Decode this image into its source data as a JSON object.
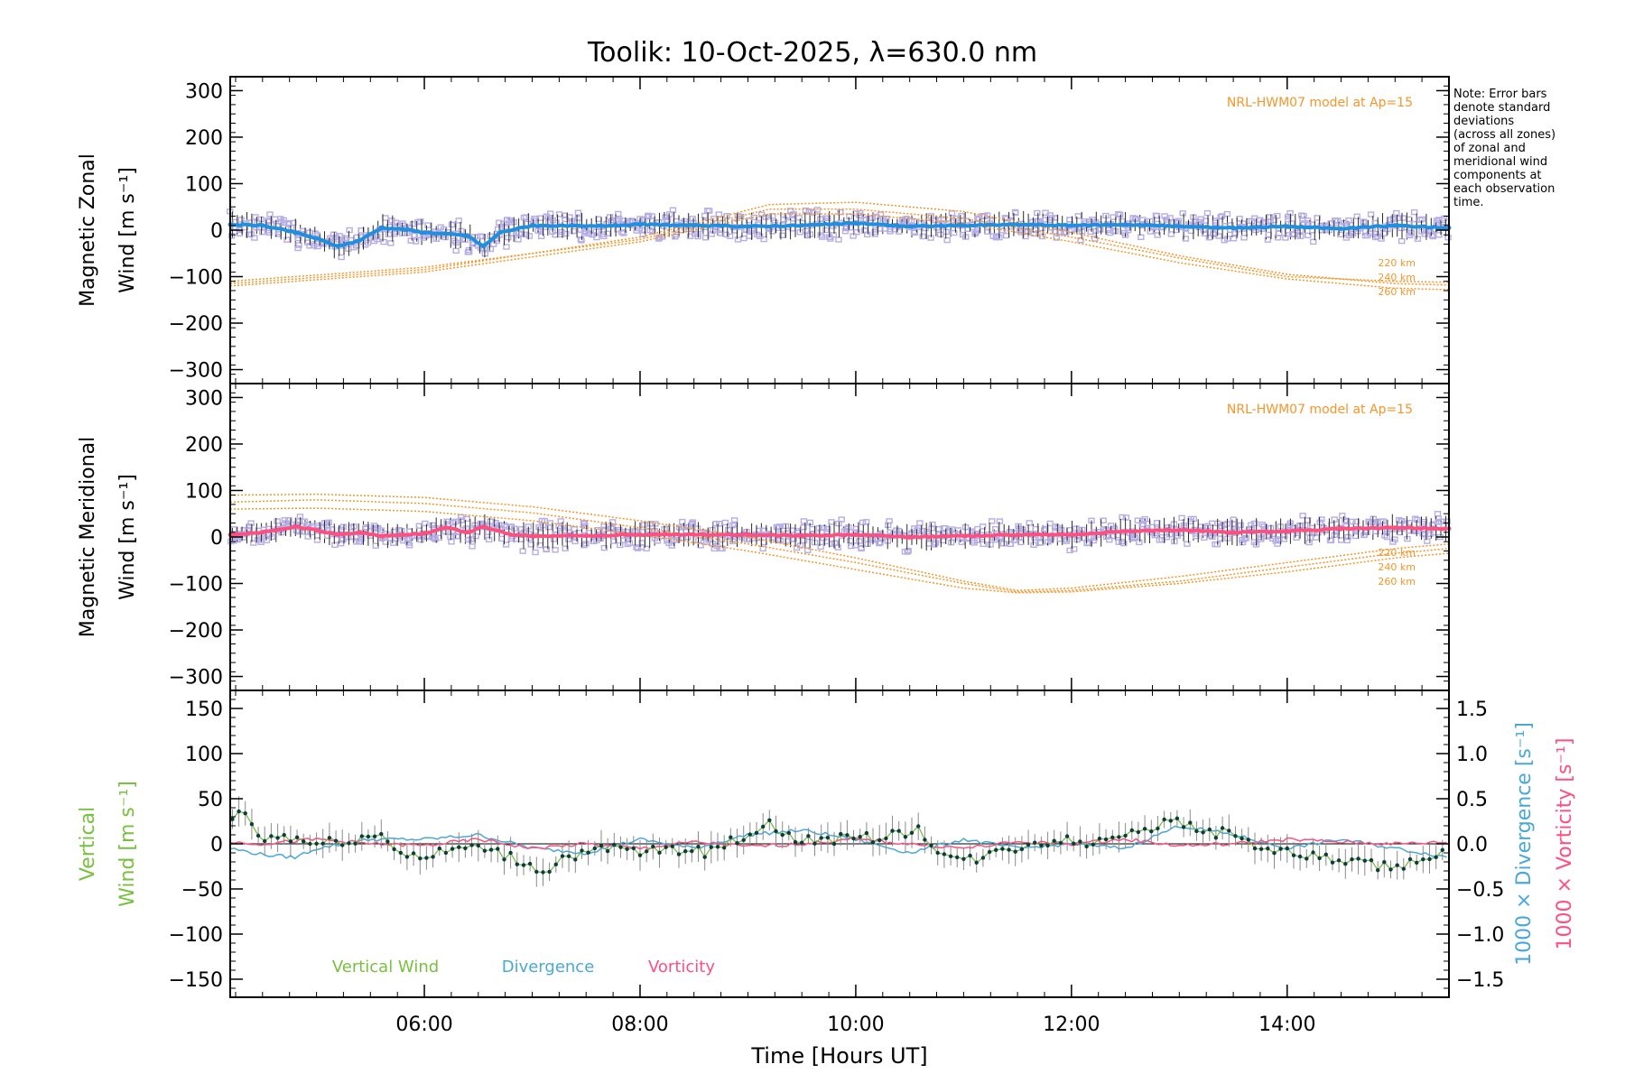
{
  "figure": {
    "title": "Toolik: 10-Oct-2025, λ=630.0 nm",
    "note_lines": [
      "Note: Error bars",
      "denote standard",
      "deviations",
      "(across all zones)",
      "of zonal and",
      "meridional wind",
      "components at",
      "each observation",
      "time."
    ],
    "xlabel": "Time [Hours UT]",
    "x_tick_labels": [
      "06:00",
      "08:00",
      "10:00",
      "12:00",
      "14:00"
    ],
    "colors": {
      "model": "#f5962a",
      "zonal": "#1f8fe0",
      "meridional": "#ff4f80",
      "zone_points": "#b6aee6",
      "vertical": "#78c040",
      "vertical_points": "#0b3d3a",
      "divergence": "#4aa8d8",
      "vorticity": "#ff4f80",
      "axis": "#000000"
    }
  },
  "chart_data": [
    {
      "type": "line",
      "panel": "zonal",
      "ylabel_top": "Magnetic Zonal",
      "ylabel_bottom": "Wind [m s⁻¹]",
      "y_tick_labels": [
        "300",
        "200",
        "100",
        "0",
        "−100",
        "−200",
        "−300"
      ],
      "ylim": [
        -330,
        330
      ],
      "xlim": [
        4.2,
        15.5
      ],
      "model_label": "NRL-HWM07 model at Ap=15",
      "model_alt_labels": [
        "220 km",
        "240 km",
        "260 km"
      ],
      "model_curves": [
        {
          "name": "220 km",
          "x": [
            4.2,
            6,
            8,
            9.2,
            10,
            11,
            12,
            13,
            14,
            15,
            15.5
          ],
          "y": [
            -115,
            -85,
            -15,
            55,
            60,
            40,
            -5,
            -55,
            -95,
            -115,
            -118
          ]
        },
        {
          "name": "240 km",
          "x": [
            4.2,
            6,
            8,
            9.2,
            10,
            11,
            12,
            13,
            14,
            15,
            15.5
          ],
          "y": [
            -110,
            -80,
            -20,
            45,
            45,
            25,
            -15,
            -60,
            -100,
            -110,
            -112
          ]
        },
        {
          "name": "260 km",
          "x": [
            4.2,
            6,
            8,
            9.2,
            10,
            11,
            12,
            13,
            14,
            15,
            15.5
          ],
          "y": [
            -120,
            -90,
            -25,
            35,
            35,
            15,
            -25,
            -70,
            -105,
            -125,
            -128
          ]
        }
      ],
      "series": [
        {
          "name": "Zonal wind",
          "x": [
            4.2,
            4.5,
            4.8,
            5.0,
            5.2,
            5.4,
            5.6,
            5.8,
            6.0,
            6.2,
            6.4,
            6.55,
            6.7,
            7.0,
            7.5,
            8.0,
            8.5,
            9.0,
            9.5,
            10.0,
            10.5,
            11.0,
            11.5,
            12.0,
            12.5,
            13.0,
            13.5,
            14.0,
            14.5,
            15.0,
            15.5
          ],
          "y": [
            12,
            10,
            -5,
            -18,
            -35,
            -22,
            5,
            2,
            -5,
            -8,
            -12,
            -35,
            -5,
            10,
            8,
            12,
            10,
            8,
            10,
            15,
            8,
            10,
            12,
            10,
            12,
            8,
            5,
            8,
            3,
            10,
            5
          ]
        }
      ]
    },
    {
      "type": "line",
      "panel": "meridional",
      "ylabel_top": "Magnetic Meridional",
      "ylabel_bottom": "Wind [m s⁻¹]",
      "y_tick_labels": [
        "300",
        "200",
        "100",
        "0",
        "−100",
        "−200",
        "−300"
      ],
      "ylim": [
        -330,
        330
      ],
      "xlim": [
        4.2,
        15.5
      ],
      "model_label": "NRL-HWM07 model at Ap=15",
      "model_alt_labels": [
        "220 km",
        "240 km",
        "260 km"
      ],
      "model_curves": [
        {
          "name": "220 km",
          "x": [
            4.2,
            5,
            6,
            7,
            8,
            9,
            10,
            11,
            11.5,
            12,
            13,
            14,
            15,
            15.5
          ],
          "y": [
            90,
            92,
            85,
            65,
            35,
            0,
            -45,
            -95,
            -115,
            -110,
            -85,
            -55,
            -25,
            -15
          ]
        },
        {
          "name": "240 km",
          "x": [
            4.2,
            5,
            6,
            7,
            8,
            9,
            10,
            11,
            11.5,
            12,
            13,
            14,
            15,
            15.5
          ],
          "y": [
            75,
            80,
            72,
            52,
            20,
            -15,
            -55,
            -100,
            -118,
            -115,
            -95,
            -65,
            -35,
            -25
          ]
        },
        {
          "name": "260 km",
          "x": [
            4.2,
            5,
            6,
            7,
            8,
            9,
            10,
            11,
            11.5,
            12,
            13,
            14,
            15,
            15.5
          ],
          "y": [
            60,
            62,
            55,
            35,
            5,
            -30,
            -70,
            -110,
            -120,
            -118,
            -100,
            -75,
            -45,
            -35
          ]
        }
      ],
      "series": [
        {
          "name": "Meridional wind",
          "x": [
            4.2,
            4.5,
            4.8,
            5.0,
            5.2,
            5.4,
            5.6,
            5.8,
            6.0,
            6.2,
            6.4,
            6.55,
            6.8,
            7.0,
            7.5,
            8.0,
            8.5,
            9.0,
            9.5,
            10.0,
            10.5,
            11.0,
            11.5,
            12.0,
            12.5,
            13.0,
            13.5,
            14.0,
            14.5,
            15.0,
            15.5
          ],
          "y": [
            5,
            10,
            22,
            15,
            5,
            10,
            2,
            5,
            8,
            20,
            10,
            22,
            5,
            2,
            3,
            5,
            5,
            5,
            3,
            5,
            0,
            2,
            5,
            5,
            12,
            15,
            10,
            12,
            18,
            20,
            18
          ]
        }
      ]
    },
    {
      "type": "line",
      "panel": "vertical",
      "ylabel_top": "Vertical",
      "ylabel_bottom": "Wind [m s⁻¹]",
      "y_tick_labels": [
        "150",
        "100",
        "50",
        "0",
        "−50",
        "−100",
        "−150"
      ],
      "ylim": [
        -170,
        170
      ],
      "xlim": [
        4.2,
        15.5
      ],
      "y2_tick_labels": [
        "1.5",
        "1.0",
        "0.5",
        "0.0",
        "−0.5",
        "−1.0",
        "−1.5"
      ],
      "y2lim": [
        -1.7,
        1.7
      ],
      "y2label_divergence": "1000 × Divergence [s⁻¹]",
      "y2label_vorticity": "1000 × Vorticity [s⁻¹]",
      "legend": [
        "Vertical Wind",
        "Divergence",
        "Vorticity"
      ],
      "series": [
        {
          "name": "Vertical Wind",
          "x": [
            4.2,
            4.3,
            4.4,
            4.5,
            4.7,
            5.0,
            5.3,
            5.6,
            5.8,
            6.0,
            6.3,
            6.6,
            6.9,
            7.1,
            7.3,
            7.5,
            7.8,
            8.0,
            8.3,
            8.6,
            9.0,
            9.2,
            9.4,
            9.7,
            10.0,
            10.3,
            10.6,
            10.8,
            11.0,
            11.3,
            11.6,
            11.9,
            12.2,
            12.5,
            12.8,
            13.0,
            13.2,
            13.5,
            13.8,
            14.0,
            14.3,
            14.6,
            14.9,
            15.2,
            15.5
          ],
          "y": [
            20,
            45,
            20,
            5,
            10,
            0,
            5,
            10,
            -10,
            -15,
            -5,
            -5,
            -20,
            -30,
            -15,
            -10,
            -5,
            -10,
            -5,
            -10,
            10,
            25,
            5,
            5,
            5,
            10,
            15,
            -10,
            -20,
            -10,
            0,
            5,
            0,
            15,
            20,
            25,
            15,
            10,
            -5,
            -10,
            -15,
            -20,
            -25,
            -20,
            -10
          ]
        },
        {
          "name": "Divergence",
          "x": [
            4.2,
            4.5,
            4.8,
            5.0,
            5.5,
            6.0,
            6.5,
            7.0,
            7.5,
            8.0,
            8.5,
            9.0,
            9.5,
            10.0,
            10.5,
            11.0,
            11.5,
            12.0,
            12.5,
            13.0,
            13.5,
            14.0,
            14.5,
            15.0,
            15.5
          ],
          "y": [
            -0.05,
            -0.12,
            -0.15,
            -0.05,
            0.05,
            0.05,
            0.1,
            -0.05,
            -0.1,
            0.05,
            -0.05,
            0.1,
            0.15,
            0.05,
            -0.1,
            0.05,
            -0.05,
            0.0,
            -0.05,
            0.2,
            0.1,
            -0.05,
            0.05,
            -0.05,
            -0.15
          ]
        },
        {
          "name": "Vorticity",
          "x": [
            4.2,
            4.5,
            5.0,
            5.5,
            6.0,
            6.5,
            7.0,
            7.5,
            8.0,
            8.5,
            9.0,
            9.5,
            10.0,
            10.5,
            11.0,
            11.5,
            12.0,
            12.5,
            13.0,
            13.5,
            14.0,
            14.5,
            15.0,
            15.5
          ],
          "y": [
            0.02,
            0.0,
            0.05,
            0.0,
            -0.02,
            0.05,
            -0.05,
            0.0,
            -0.05,
            0.02,
            -0.03,
            0.0,
            0.05,
            0.0,
            -0.05,
            0.02,
            0.0,
            0.05,
            -0.02,
            0.0,
            0.05,
            0.02,
            0.0,
            0.02
          ]
        }
      ]
    }
  ]
}
